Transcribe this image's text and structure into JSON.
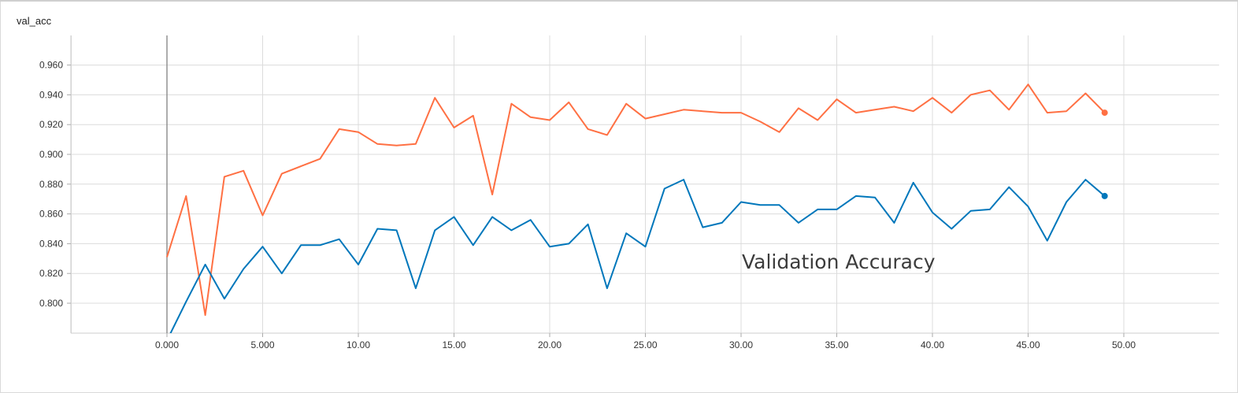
{
  "card": {
    "title": "val_acc"
  },
  "chart_data": {
    "type": "line",
    "title": "val_acc",
    "xlabel": "",
    "ylabel": "",
    "annotation": "Validation Accuracy",
    "xlim": [
      -5,
      55
    ],
    "ylim": [
      0.78,
      0.98
    ],
    "grid": true,
    "x_ticks": [
      0,
      5,
      10,
      15,
      20,
      25,
      30,
      35,
      40,
      45,
      50
    ],
    "x_tick_labels": [
      "0.000",
      "5.000",
      "10.00",
      "15.00",
      "20.00",
      "25.00",
      "30.00",
      "35.00",
      "40.00",
      "45.00",
      "50.00"
    ],
    "y_ticks": [
      0.8,
      0.82,
      0.84,
      0.86,
      0.88,
      0.9,
      0.92,
      0.94,
      0.96
    ],
    "y_tick_labels": [
      "0.800",
      "0.820",
      "0.840",
      "0.860",
      "0.880",
      "0.900",
      "0.920",
      "0.940",
      "0.960"
    ],
    "series": [
      {
        "color": "#ff7043",
        "x": [
          0,
          1,
          2,
          3,
          4,
          5,
          6,
          7,
          8,
          9,
          10,
          11,
          12,
          13,
          14,
          15,
          16,
          17,
          18,
          19,
          20,
          21,
          22,
          23,
          24,
          25,
          26,
          27,
          28,
          29,
          30,
          31,
          32,
          33,
          34,
          35,
          36,
          37,
          38,
          39,
          40,
          41,
          42,
          43,
          44,
          45,
          46,
          47,
          48,
          49
        ],
        "values": [
          0.831,
          0.872,
          0.792,
          0.885,
          0.889,
          0.859,
          0.887,
          0.892,
          0.897,
          0.917,
          0.915,
          0.907,
          0.906,
          0.907,
          0.938,
          0.918,
          0.926,
          0.873,
          0.934,
          0.925,
          0.923,
          0.935,
          0.917,
          0.913,
          0.934,
          0.924,
          0.927,
          0.93,
          0.929,
          0.928,
          0.928,
          0.922,
          0.915,
          0.931,
          0.923,
          0.937,
          0.928,
          0.93,
          0.932,
          0.929,
          0.938,
          0.928,
          0.94,
          0.943,
          0.93,
          0.947,
          0.928,
          0.929,
          0.941,
          0.928
        ]
      },
      {
        "color": "#0077bb",
        "x": [
          0,
          1,
          2,
          3,
          4,
          5,
          6,
          7,
          8,
          9,
          10,
          11,
          12,
          13,
          14,
          15,
          16,
          17,
          18,
          19,
          20,
          21,
          22,
          23,
          24,
          25,
          26,
          27,
          28,
          29,
          30,
          31,
          32,
          33,
          34,
          35,
          36,
          37,
          38,
          39,
          40,
          41,
          42,
          43,
          44,
          45,
          46,
          47,
          48,
          49
        ],
        "values": [
          0.775,
          0.801,
          0.826,
          0.803,
          0.823,
          0.838,
          0.82,
          0.839,
          0.839,
          0.843,
          0.826,
          0.85,
          0.849,
          0.81,
          0.849,
          0.858,
          0.839,
          0.858,
          0.849,
          0.856,
          0.838,
          0.84,
          0.853,
          0.81,
          0.847,
          0.838,
          0.877,
          0.883,
          0.851,
          0.854,
          0.868,
          0.866,
          0.866,
          0.854,
          0.863,
          0.863,
          0.872,
          0.871,
          0.854,
          0.881,
          0.861,
          0.85,
          0.862,
          0.863,
          0.878,
          0.865,
          0.842,
          0.868,
          0.883,
          0.872
        ]
      }
    ]
  }
}
